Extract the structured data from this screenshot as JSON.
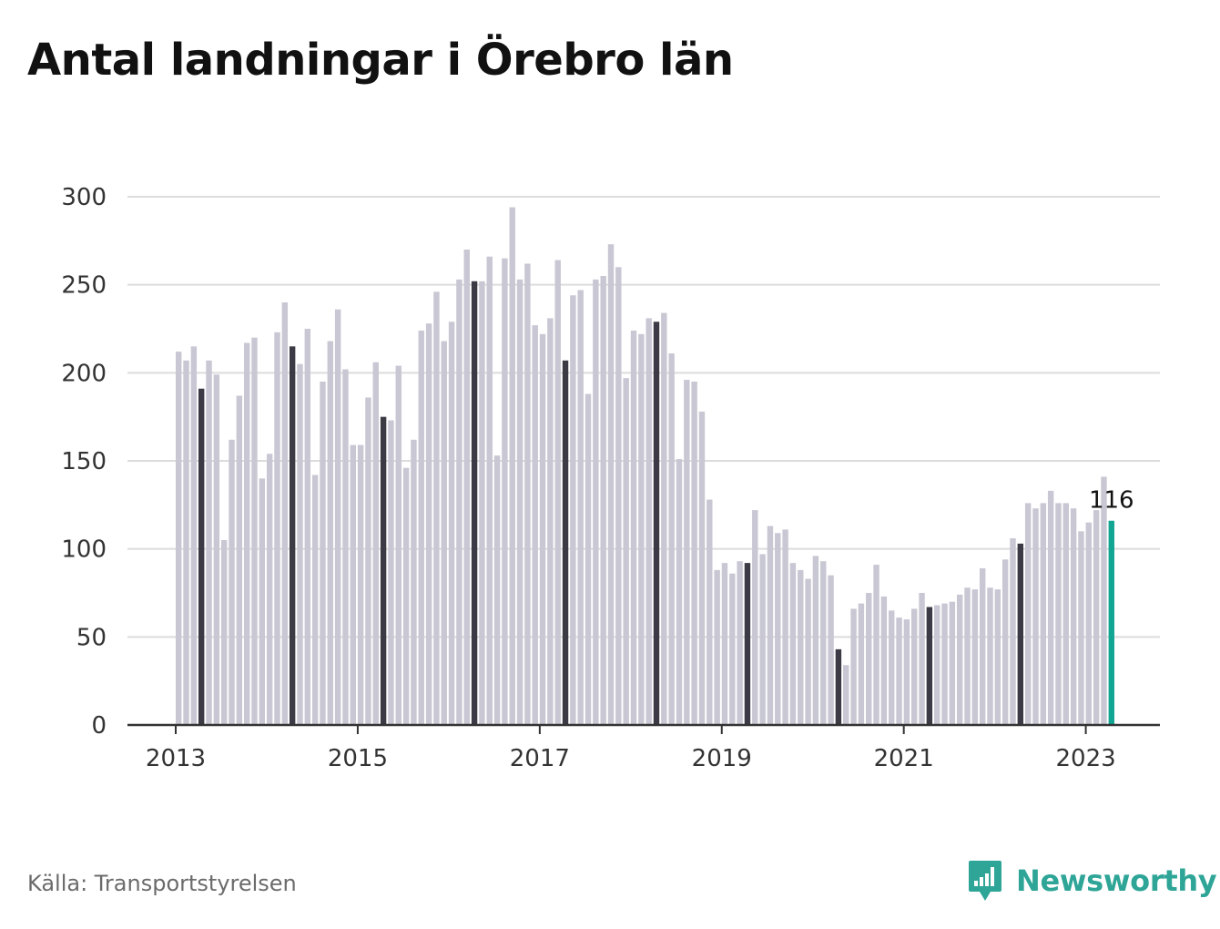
{
  "title": "Antal landningar i Örebro län",
  "source": "Källa: Transportstyrelsen",
  "brand": {
    "name": "Newsworthy",
    "logo_icon": "bar-chart-speech-bubble-icon"
  },
  "colors": {
    "bar": "#c8c7d3",
    "bar_april": "#3b3a45",
    "bar_latest": "#12a594",
    "grid": "#dcdcdc",
    "axis": "#333333",
    "brand": "#2ea597"
  },
  "chart_data": {
    "type": "bar",
    "title": "Antal landningar i Örebro län",
    "xlabel": "",
    "ylabel": "",
    "ylim": [
      0,
      300
    ],
    "yticks": [
      0,
      50,
      100,
      150,
      200,
      250,
      300
    ],
    "xticks": [
      "2013",
      "2015",
      "2017",
      "2019",
      "2021",
      "2023"
    ],
    "grid": true,
    "start": "2013-01",
    "highlight_month": "april",
    "annotation": {
      "label": "116",
      "month": "2023-04"
    },
    "values": [
      212,
      207,
      215,
      191,
      207,
      199,
      105,
      162,
      187,
      217,
      220,
      140,
      154,
      223,
      240,
      215,
      205,
      225,
      142,
      195,
      218,
      236,
      202,
      159,
      159,
      186,
      206,
      175,
      173,
      204,
      146,
      162,
      224,
      228,
      246,
      218,
      229,
      253,
      270,
      252,
      252,
      266,
      153,
      265,
      294,
      253,
      262,
      227,
      222,
      231,
      264,
      207,
      244,
      247,
      188,
      253,
      255,
      273,
      260,
      197,
      224,
      222,
      231,
      229,
      234,
      211,
      151,
      196,
      195,
      178,
      128,
      88,
      92,
      86,
      93,
      92,
      122,
      97,
      113,
      109,
      111,
      92,
      88,
      83,
      96,
      93,
      85,
      43,
      34,
      66,
      69,
      75,
      91,
      73,
      65,
      61,
      60,
      66,
      75,
      67,
      68,
      69,
      70,
      74,
      78,
      77,
      89,
      78,
      77,
      94,
      106,
      103,
      126,
      123,
      126,
      133,
      126,
      126,
      123,
      110,
      115,
      122,
      141,
      116
    ]
  }
}
